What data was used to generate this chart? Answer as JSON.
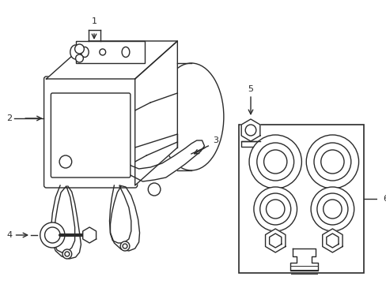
{
  "bg_color": "#ffffff",
  "line_color": "#2a2a2a",
  "lw": 1.0,
  "fig_w": 4.89,
  "fig_h": 3.6,
  "dpi": 100
}
